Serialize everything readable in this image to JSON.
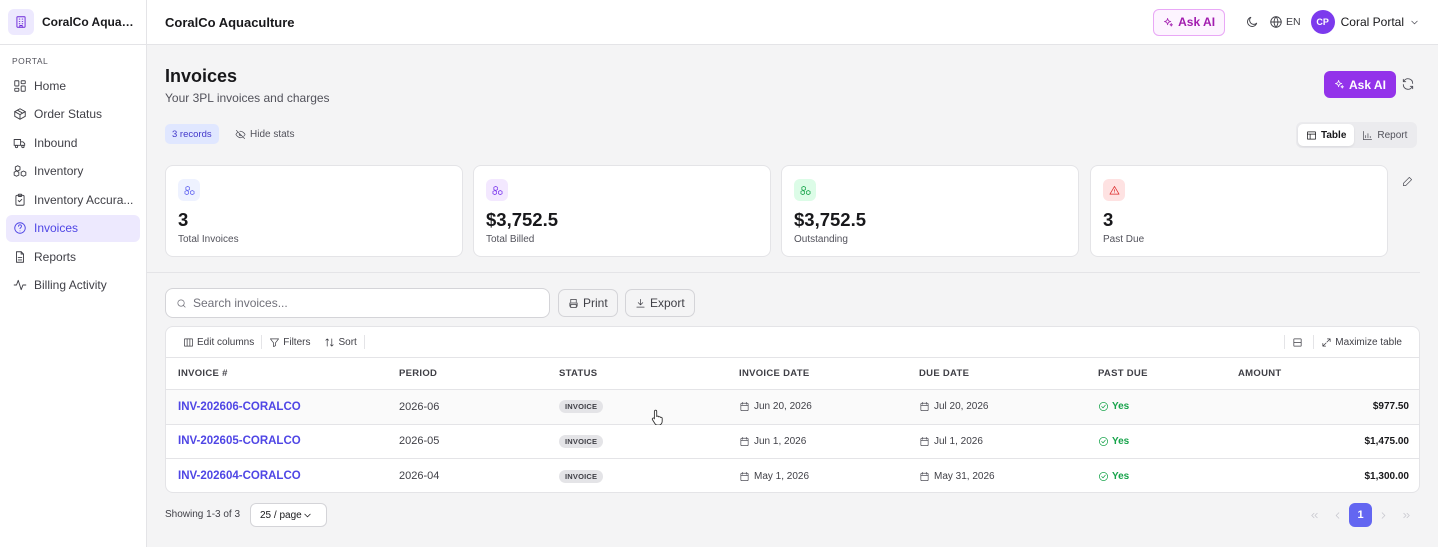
{
  "brand": {
    "name": "CoralCo Aquac..."
  },
  "sidebar": {
    "section": "PORTAL",
    "items": [
      {
        "label": "Home",
        "icon": "grid-icon"
      },
      {
        "label": "Order Status",
        "icon": "package-icon"
      },
      {
        "label": "Inbound",
        "icon": "truck-icon"
      },
      {
        "label": "Inventory",
        "icon": "boxes-icon"
      },
      {
        "label": "Inventory Accura...",
        "icon": "clipboard-check-icon"
      },
      {
        "label": "Invoices",
        "icon": "dollar-circle-icon",
        "active": true
      },
      {
        "label": "Reports",
        "icon": "file-text-icon"
      },
      {
        "label": "Billing Activity",
        "icon": "activity-icon"
      }
    ]
  },
  "header": {
    "title": "CoralCo Aquaculture",
    "ask_ai": "Ask AI",
    "language": "EN",
    "user_initials": "CP",
    "user_name": "Coral Portal"
  },
  "page": {
    "title": "Invoices",
    "subtitle": "Your 3PL invoices and charges",
    "ask_ai": "Ask AI",
    "records": "3 records",
    "hide_stats": "Hide stats",
    "view_table": "Table",
    "view_report": "Report"
  },
  "stats": [
    {
      "value": "3",
      "label": "Total Invoices",
      "color": "#6366f1",
      "bg": "#eef2ff"
    },
    {
      "value": "$3,752.5",
      "label": "Total Billed",
      "color": "#7c3aed",
      "bg": "#f3e8ff"
    },
    {
      "value": "$3,752.5",
      "label": "Outstanding",
      "color": "#16a34a",
      "bg": "#dcfce7"
    },
    {
      "value": "3",
      "label": "Past Due",
      "color": "#dc2626",
      "bg": "#fee2e2"
    }
  ],
  "search": {
    "placeholder": "Search invoices..."
  },
  "actions": {
    "print": "Print",
    "export": "Export"
  },
  "toolbar": {
    "edit_columns": "Edit columns",
    "filters": "Filters",
    "sort": "Sort",
    "maximize": "Maximize table"
  },
  "table": {
    "columns": [
      "INVOICE #",
      "PERIOD",
      "STATUS",
      "INVOICE DATE",
      "DUE DATE",
      "PAST DUE",
      "AMOUNT"
    ],
    "rows": [
      {
        "invoice": "INV-202606-CORALCO",
        "period": "2026-06",
        "status": "INVOICE",
        "invoice_date": "Jun 20, 2026",
        "due_date": "Jul 20, 2026",
        "past_due": "Yes",
        "amount": "$977.50"
      },
      {
        "invoice": "INV-202605-CORALCO",
        "period": "2026-05",
        "status": "INVOICE",
        "invoice_date": "Jun 1, 2026",
        "due_date": "Jul 1, 2026",
        "past_due": "Yes",
        "amount": "$1,475.00"
      },
      {
        "invoice": "INV-202604-CORALCO",
        "period": "2026-04",
        "status": "INVOICE",
        "invoice_date": "May 1, 2026",
        "due_date": "May 31, 2026",
        "past_due": "Yes",
        "amount": "$1,300.00"
      }
    ]
  },
  "footer": {
    "showing": "Showing 1-3 of 3",
    "per_page": "25 / page",
    "current_page": "1"
  }
}
